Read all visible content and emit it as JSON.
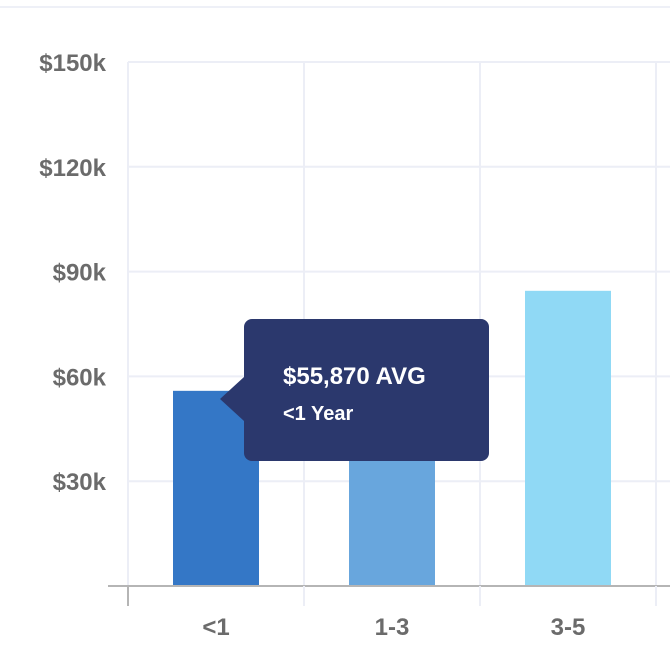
{
  "chart_data": {
    "type": "bar",
    "categories": [
      "<1",
      "1-3",
      "3-5"
    ],
    "values": [
      55870,
      55870,
      84500
    ],
    "colors": [
      "#3477c6",
      "#68a6dd",
      "#90d9f5"
    ],
    "ylim": [
      0,
      150000
    ],
    "y_ticks": [
      {
        "value": 30000,
        "label": "$30k"
      },
      {
        "value": 60000,
        "label": "$60k"
      },
      {
        "value": 90000,
        "label": "$90k"
      },
      {
        "value": 120000,
        "label": "$120k"
      },
      {
        "value": 150000,
        "label": "$150k"
      }
    ],
    "grid": true,
    "title": "",
    "xlabel": "",
    "ylabel": ""
  },
  "tooltip": {
    "value": "$55,870 AVG",
    "label": "<1 Year",
    "background": "#2b386d"
  }
}
